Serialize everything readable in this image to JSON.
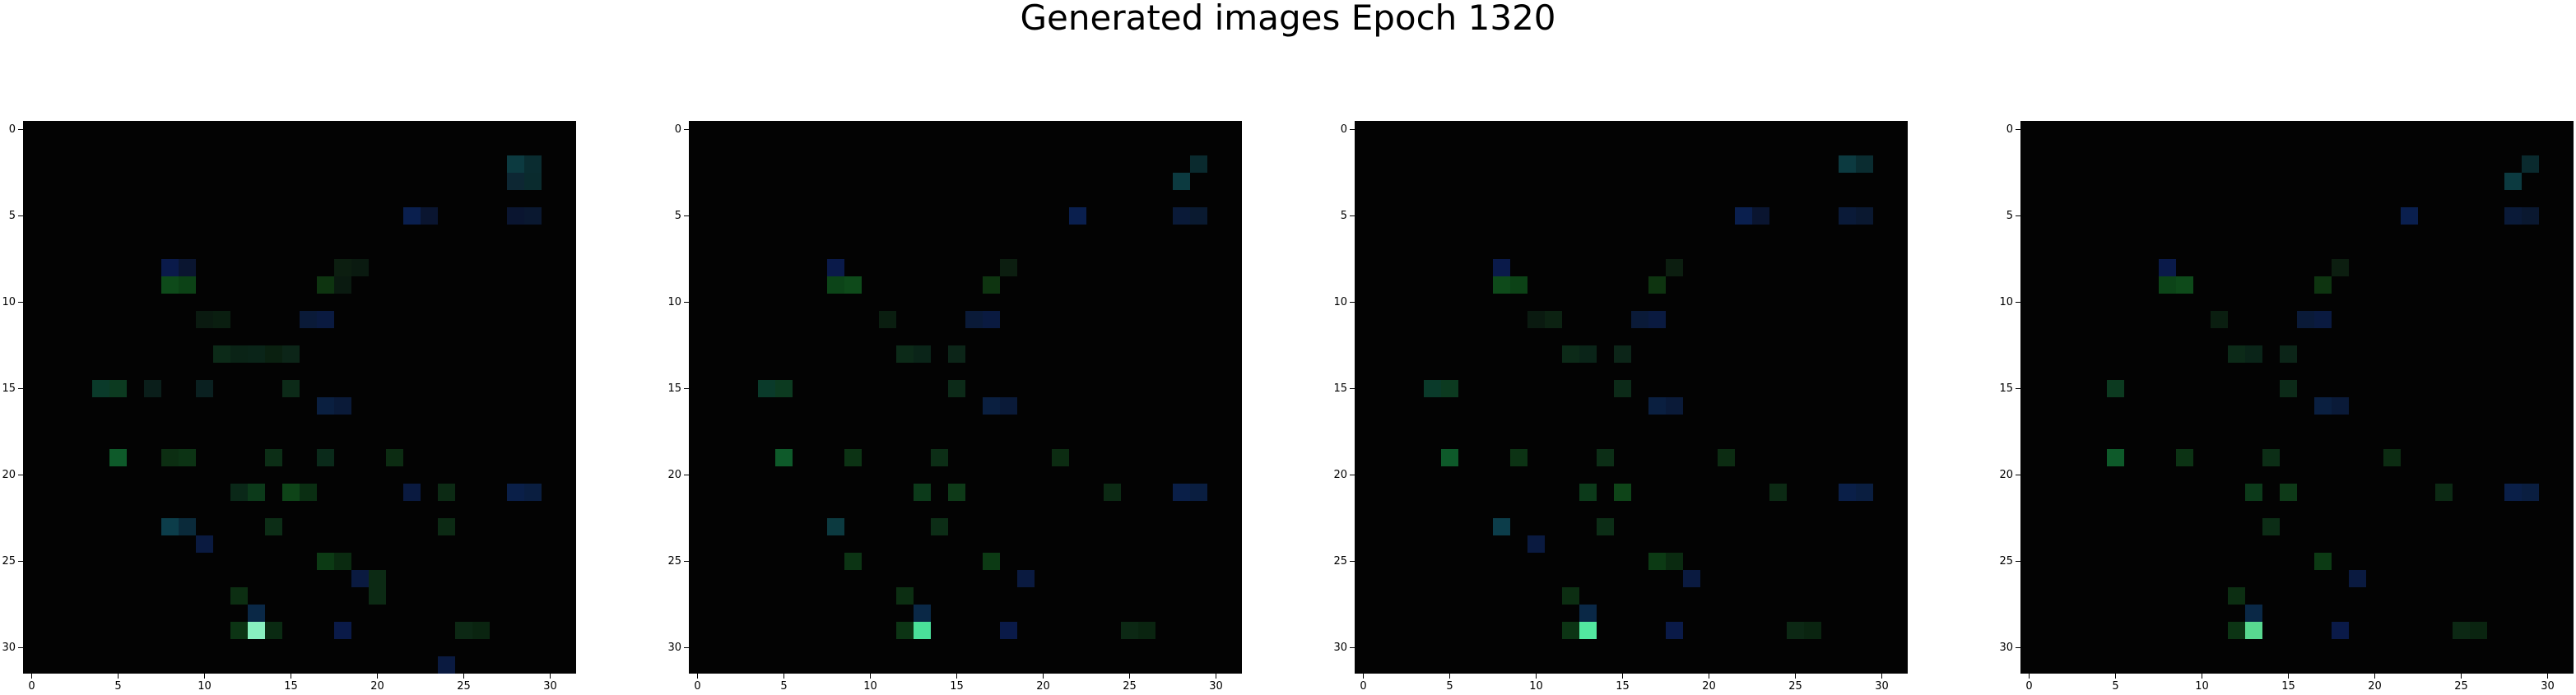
{
  "figure": {
    "title": "Generated images Epoch 1320"
  },
  "chart_data": {
    "type": "heatmap",
    "title": "Generated images Epoch 1320",
    "grid_size": 32,
    "xlim": [
      -0.5,
      31.5
    ],
    "ylim": [
      31.5,
      -0.5
    ],
    "x_ticks": [
      0,
      5,
      10,
      15,
      20,
      25,
      30
    ],
    "y_ticks": [
      0,
      5,
      10,
      15,
      20,
      25,
      30
    ],
    "background": "#030303",
    "panels": [
      {
        "cells": [
          [
            28,
            2,
            "#0c3a40"
          ],
          [
            29,
            2,
            "#0a2c30"
          ],
          [
            28,
            3,
            "#0d2733"
          ],
          [
            29,
            3,
            "#0a2b2e"
          ],
          [
            22,
            5,
            "#0a1f4e"
          ],
          [
            23,
            5,
            "#0a1530"
          ],
          [
            28,
            5,
            "#0a1530"
          ],
          [
            29,
            5,
            "#0a1830"
          ],
          [
            8,
            8,
            "#0a1a4a"
          ],
          [
            9,
            8,
            "#0a1530"
          ],
          [
            18,
            8,
            "#0c1e10"
          ],
          [
            19,
            8,
            "#0a1a10"
          ],
          [
            8,
            9,
            "#0e4a1a"
          ],
          [
            9,
            9,
            "#0c4216"
          ],
          [
            17,
            9,
            "#0e3410"
          ],
          [
            18,
            9,
            "#0a1a10"
          ],
          [
            10,
            11,
            "#0a1a10"
          ],
          [
            11,
            11,
            "#0a1e10"
          ],
          [
            16,
            11,
            "#0a1a38"
          ],
          [
            17,
            11,
            "#0a1a40"
          ],
          [
            11,
            13,
            "#0c2a18"
          ],
          [
            12,
            13,
            "#0a2316"
          ],
          [
            13,
            13,
            "#0a2418"
          ],
          [
            14,
            13,
            "#0a2010"
          ],
          [
            15,
            13,
            "#0c2518"
          ],
          [
            4,
            15,
            "#0a3a2a"
          ],
          [
            5,
            15,
            "#0c3a20"
          ],
          [
            7,
            15,
            "#0a1e1a"
          ],
          [
            10,
            15,
            "#0a2020"
          ],
          [
            15,
            15,
            "#0c2a18"
          ],
          [
            17,
            16,
            "#0a1f40"
          ],
          [
            18,
            16,
            "#0a1a38"
          ],
          [
            5,
            19,
            "#0e5a2a"
          ],
          [
            8,
            19,
            "#0c2e12"
          ],
          [
            9,
            19,
            "#0c3314"
          ],
          [
            14,
            19,
            "#0c2e16"
          ],
          [
            17,
            19,
            "#0a2a1a"
          ],
          [
            21,
            19,
            "#0c2c12"
          ],
          [
            12,
            21,
            "#0a2818"
          ],
          [
            13,
            21,
            "#0c3a1a"
          ],
          [
            15,
            21,
            "#0e4418"
          ],
          [
            16,
            21,
            "#0a2e12"
          ],
          [
            22,
            21,
            "#0a1a40"
          ],
          [
            24,
            21,
            "#0c2a14"
          ],
          [
            28,
            21,
            "#0a1f48"
          ],
          [
            29,
            21,
            "#0a1e40"
          ],
          [
            8,
            23,
            "#0c3d4a"
          ],
          [
            9,
            23,
            "#0a2a3a"
          ],
          [
            14,
            23,
            "#0c2d16"
          ],
          [
            24,
            23,
            "#0c2a14"
          ],
          [
            10,
            24,
            "#0a1a40"
          ],
          [
            17,
            25,
            "#0c3a14"
          ],
          [
            18,
            25,
            "#0a2a10"
          ],
          [
            19,
            26,
            "#0a1a40"
          ],
          [
            20,
            26,
            "#0c2a14"
          ],
          [
            12,
            27,
            "#0c2e12"
          ],
          [
            20,
            27,
            "#0c2a14"
          ],
          [
            13,
            28,
            "#0a2846"
          ],
          [
            13,
            29,
            "#88f0c0"
          ],
          [
            12,
            29,
            "#0c3414"
          ],
          [
            14,
            29,
            "#0a2a12"
          ],
          [
            18,
            29,
            "#0a1a48"
          ],
          [
            25,
            29,
            "#0c2814"
          ],
          [
            26,
            29,
            "#0a2410"
          ],
          [
            24,
            31,
            "#0a1a40"
          ]
        ]
      },
      {
        "cells": [
          [
            28,
            3,
            "#0c3a40"
          ],
          [
            29,
            2,
            "#0a2a2e"
          ],
          [
            28,
            5,
            "#0a1a38"
          ],
          [
            29,
            5,
            "#0a1a30"
          ],
          [
            22,
            5,
            "#0a1f4e"
          ],
          [
            8,
            8,
            "#0a1a4a"
          ],
          [
            9,
            9,
            "#0e4a1a"
          ],
          [
            8,
            9,
            "#0c4418"
          ],
          [
            17,
            9,
            "#0e3410"
          ],
          [
            18,
            8,
            "#0c1e10"
          ],
          [
            16,
            11,
            "#0a1a38"
          ],
          [
            17,
            11,
            "#0a1a40"
          ],
          [
            11,
            11,
            "#0a1e10"
          ],
          [
            12,
            13,
            "#0c2a18"
          ],
          [
            13,
            13,
            "#0a2418"
          ],
          [
            15,
            13,
            "#0c2518"
          ],
          [
            4,
            15,
            "#0a3a2a"
          ],
          [
            5,
            15,
            "#0c3a20"
          ],
          [
            15,
            15,
            "#0c2a18"
          ],
          [
            17,
            16,
            "#0a1f40"
          ],
          [
            18,
            16,
            "#0a1a38"
          ],
          [
            5,
            19,
            "#0e5a2a"
          ],
          [
            9,
            19,
            "#0c3314"
          ],
          [
            14,
            19,
            "#0c2e16"
          ],
          [
            21,
            19,
            "#0c2c12"
          ],
          [
            13,
            21,
            "#0c3a1a"
          ],
          [
            15,
            21,
            "#0e3a18"
          ],
          [
            28,
            21,
            "#0a1f48"
          ],
          [
            29,
            21,
            "#0a1e40"
          ],
          [
            24,
            21,
            "#0c2a14"
          ],
          [
            8,
            23,
            "#0c3a40"
          ],
          [
            14,
            23,
            "#0c2d16"
          ],
          [
            9,
            25,
            "#0c3414"
          ],
          [
            17,
            25,
            "#0c3a14"
          ],
          [
            19,
            26,
            "#0a1a40"
          ],
          [
            12,
            27,
            "#0c2e12"
          ],
          [
            13,
            28,
            "#0a2846"
          ],
          [
            13,
            29,
            "#4ae09a"
          ],
          [
            12,
            29,
            "#0c3414"
          ],
          [
            18,
            29,
            "#0a1a48"
          ],
          [
            25,
            29,
            "#0c2814"
          ],
          [
            26,
            29,
            "#0a2410"
          ]
        ]
      },
      {
        "cells": [
          [
            28,
            2,
            "#0c3a40"
          ],
          [
            29,
            2,
            "#0a2c30"
          ],
          [
            28,
            5,
            "#0a1a38"
          ],
          [
            29,
            5,
            "#0a1830"
          ],
          [
            22,
            5,
            "#0a1f4e"
          ],
          [
            23,
            5,
            "#0a1530"
          ],
          [
            8,
            8,
            "#0a1a4a"
          ],
          [
            8,
            9,
            "#0e4a1a"
          ],
          [
            9,
            9,
            "#0c4216"
          ],
          [
            17,
            9,
            "#0e3410"
          ],
          [
            18,
            8,
            "#0c1e10"
          ],
          [
            10,
            11,
            "#0a1a10"
          ],
          [
            11,
            11,
            "#0c2212"
          ],
          [
            16,
            11,
            "#0a1a38"
          ],
          [
            17,
            11,
            "#0a1a40"
          ],
          [
            12,
            13,
            "#0c2a18"
          ],
          [
            13,
            13,
            "#0a2418"
          ],
          [
            15,
            13,
            "#0c2518"
          ],
          [
            4,
            15,
            "#0a3a2a"
          ],
          [
            5,
            15,
            "#0c3a20"
          ],
          [
            15,
            15,
            "#0c2a18"
          ],
          [
            17,
            16,
            "#0a1f40"
          ],
          [
            18,
            16,
            "#0a1a38"
          ],
          [
            5,
            19,
            "#0e5a2a"
          ],
          [
            9,
            19,
            "#0c3314"
          ],
          [
            14,
            19,
            "#0c2e16"
          ],
          [
            21,
            19,
            "#0c2c12"
          ],
          [
            13,
            21,
            "#0c3a1a"
          ],
          [
            15,
            21,
            "#0e4418"
          ],
          [
            24,
            21,
            "#0c2a14"
          ],
          [
            28,
            21,
            "#0a1f48"
          ],
          [
            29,
            21,
            "#0a1e40"
          ],
          [
            8,
            23,
            "#0c3d4a"
          ],
          [
            10,
            24,
            "#0a1a40"
          ],
          [
            14,
            23,
            "#0c2d16"
          ],
          [
            17,
            25,
            "#0c3a14"
          ],
          [
            18,
            25,
            "#0a2a10"
          ],
          [
            19,
            26,
            "#0a1a40"
          ],
          [
            12,
            27,
            "#0c2e12"
          ],
          [
            13,
            28,
            "#0a2846"
          ],
          [
            13,
            29,
            "#52e8a0"
          ],
          [
            12,
            29,
            "#0c3414"
          ],
          [
            18,
            29,
            "#0a1a48"
          ],
          [
            25,
            29,
            "#0c2814"
          ],
          [
            26,
            29,
            "#0a2410"
          ]
        ]
      },
      {
        "cells": [
          [
            28,
            3,
            "#0c3a40"
          ],
          [
            29,
            2,
            "#0a2a2e"
          ],
          [
            28,
            5,
            "#0a1a38"
          ],
          [
            29,
            5,
            "#0a1830"
          ],
          [
            22,
            5,
            "#0a1f4e"
          ],
          [
            8,
            8,
            "#0a1a4a"
          ],
          [
            9,
            9,
            "#0e4a1a"
          ],
          [
            8,
            9,
            "#0c4418"
          ],
          [
            17,
            9,
            "#0e3410"
          ],
          [
            18,
            8,
            "#0c1e10"
          ],
          [
            11,
            11,
            "#0a1e10"
          ],
          [
            16,
            11,
            "#0a1a38"
          ],
          [
            17,
            11,
            "#0a1a40"
          ],
          [
            12,
            13,
            "#0c2a18"
          ],
          [
            13,
            13,
            "#0a2418"
          ],
          [
            15,
            13,
            "#0c2518"
          ],
          [
            5,
            15,
            "#0c3a20"
          ],
          [
            15,
            15,
            "#0c2a18"
          ],
          [
            17,
            16,
            "#0a1f40"
          ],
          [
            18,
            16,
            "#0a1a38"
          ],
          [
            5,
            19,
            "#0e5a2a"
          ],
          [
            9,
            19,
            "#0c3314"
          ],
          [
            14,
            19,
            "#0c2e16"
          ],
          [
            21,
            19,
            "#0c2c12"
          ],
          [
            13,
            21,
            "#0c3a1a"
          ],
          [
            15,
            21,
            "#0e3a18"
          ],
          [
            28,
            21,
            "#0a1f48"
          ],
          [
            29,
            21,
            "#0a1e40"
          ],
          [
            24,
            21,
            "#0c2a14"
          ],
          [
            14,
            23,
            "#0c2d16"
          ],
          [
            17,
            25,
            "#0c3a14"
          ],
          [
            19,
            26,
            "#0a1a40"
          ],
          [
            12,
            27,
            "#0c2e12"
          ],
          [
            13,
            28,
            "#0a2846"
          ],
          [
            13,
            29,
            "#58d890"
          ],
          [
            12,
            29,
            "#0c3414"
          ],
          [
            18,
            29,
            "#0a1a48"
          ],
          [
            25,
            29,
            "#0c2814"
          ],
          [
            26,
            29,
            "#0a2410"
          ]
        ]
      }
    ]
  }
}
